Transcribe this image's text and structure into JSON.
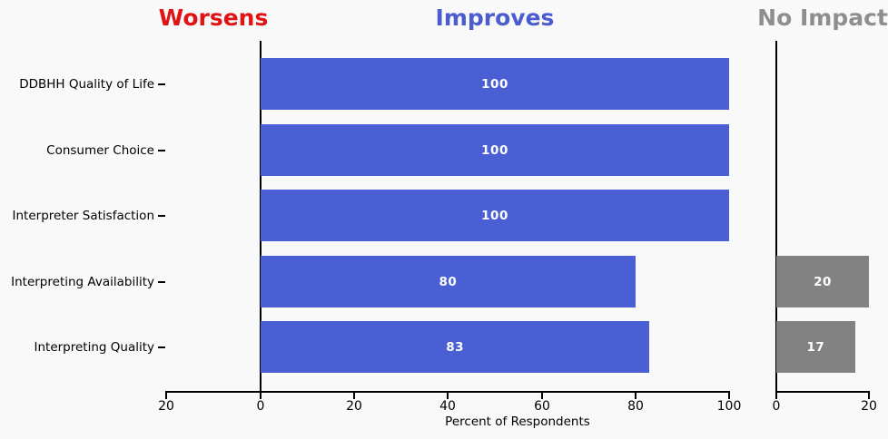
{
  "figure": {
    "background_color": "#f9f9f9",
    "text_color": "#000000"
  },
  "chart_data": {
    "type": "bar",
    "orientation": "horizontal",
    "title": "",
    "xlabel": "Percent of Respondents",
    "value_label_color": "#ffffff",
    "categories": [
      "DDBHH Quality of Life",
      "Consumer Choice",
      "Interpreter Satisfaction",
      "Interpreting Availability",
      "Interpreting Quality"
    ],
    "panels": [
      {
        "id": "worsens",
        "title": "Worsens",
        "title_color": "#e01414",
        "bar_color": "#e01414",
        "xlim": [
          20,
          0
        ],
        "reversed": true,
        "ticks": [
          20,
          0
        ],
        "values": [
          0,
          0,
          0,
          0,
          0
        ]
      },
      {
        "id": "improves",
        "title": "Improves",
        "title_color": "#4a5cd0",
        "bar_color": "#4a5fd3",
        "xlim": [
          0,
          100
        ],
        "reversed": false,
        "ticks": [
          0,
          20,
          40,
          60,
          80,
          100
        ],
        "values": [
          100,
          100,
          100,
          80,
          83
        ]
      },
      {
        "id": "no-impact",
        "title": "No Impact",
        "title_color": "#8e8e8e",
        "bar_color": "#828282",
        "xlim": [
          0,
          20
        ],
        "reversed": false,
        "ticks": [
          0,
          20
        ],
        "values": [
          0,
          0,
          0,
          20,
          17
        ]
      }
    ],
    "grid": false,
    "legend": false
  }
}
